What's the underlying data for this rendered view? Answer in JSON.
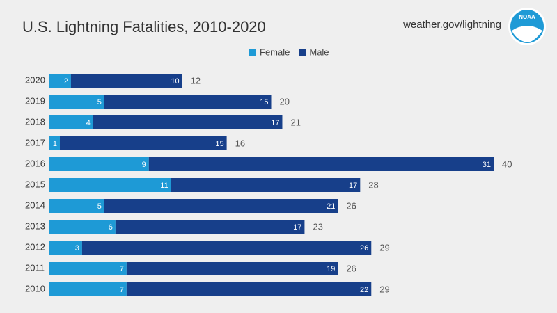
{
  "chart_data": {
    "type": "stacked-bar-horizontal",
    "title": "U.S. Lightning Fatalities, 2010-2020",
    "source": "weather.gov/lightning",
    "logo": "NOAA",
    "categories": [
      "2020",
      "2019",
      "2018",
      "2017",
      "2016",
      "2015",
      "2014",
      "2013",
      "2012",
      "2011",
      "2010"
    ],
    "series": [
      {
        "name": "Female",
        "color": "#1e9ad6",
        "values": [
          2,
          5,
          4,
          1,
          9,
          11,
          5,
          6,
          3,
          7,
          7
        ]
      },
      {
        "name": "Male",
        "color": "#173f8a",
        "values": [
          10,
          15,
          17,
          15,
          31,
          17,
          21,
          17,
          26,
          19,
          22
        ]
      }
    ],
    "totals": [
      12,
      20,
      21,
      16,
      40,
      28,
      26,
      23,
      29,
      26,
      29
    ]
  }
}
